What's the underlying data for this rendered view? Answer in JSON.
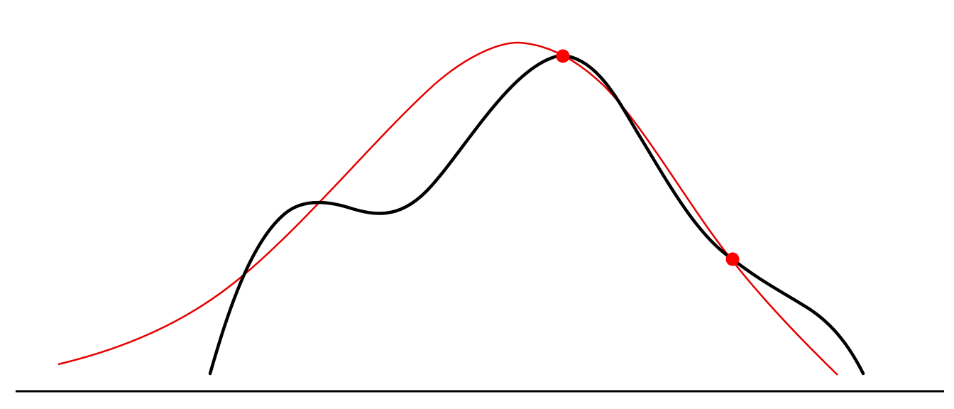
{
  "diagram": {
    "colors": {
      "background": "#ffffff",
      "baseline": "#000000",
      "target_curve": "#000000",
      "approx_curve": "#e60000",
      "marker": "#ff0000"
    },
    "curves": [
      {
        "name": "target-curve",
        "kind": "bimodal density"
      },
      {
        "name": "approximation-curve",
        "kind": "single gaussian"
      }
    ],
    "markers": [
      {
        "name": "marker-at-peak"
      },
      {
        "name": "marker-right-slope"
      }
    ]
  }
}
